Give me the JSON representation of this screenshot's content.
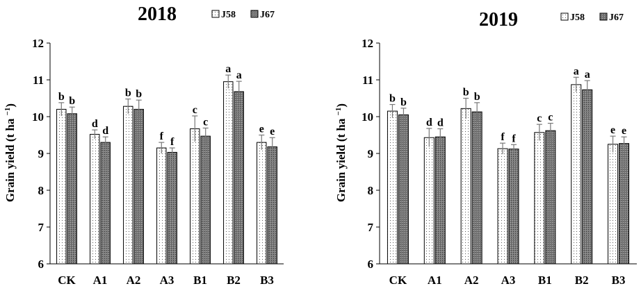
{
  "chart_data": [
    {
      "type": "bar",
      "title": "2018",
      "ylabel": "Grain yield (t ha",
      "ylabel_exp": "−1",
      "ylabel_close": ")",
      "ylim": [
        6,
        12
      ],
      "yticks": [
        "6",
        "7",
        "8",
        "9",
        "10",
        "11",
        "12"
      ],
      "categories": [
        "CK",
        "A1",
        "A2",
        "A3",
        "B1",
        "B2",
        "B3"
      ],
      "legend_position": "top-right",
      "series": [
        {
          "name": "J58",
          "pattern": "dotted",
          "values": [
            10.2,
            9.52,
            10.28,
            9.15,
            9.67,
            10.95,
            9.3
          ],
          "errors": [
            0.18,
            0.12,
            0.2,
            0.15,
            0.35,
            0.18,
            0.2
          ],
          "labels": [
            "b",
            "d",
            "b",
            "f",
            "c",
            "a",
            "e"
          ]
        },
        {
          "name": "J67",
          "pattern": "gray-crosshatch",
          "values": [
            10.08,
            9.3,
            10.2,
            9.03,
            9.47,
            10.68,
            9.18
          ],
          "errors": [
            0.18,
            0.15,
            0.25,
            0.12,
            0.22,
            0.28,
            0.25
          ],
          "labels": [
            "b",
            "d",
            "b",
            "f",
            "c",
            "a",
            "e"
          ]
        }
      ]
    },
    {
      "type": "bar",
      "title": "2019",
      "ylabel": "Grain yield (t ha",
      "ylabel_exp": "−1",
      "ylabel_close": ")",
      "ylim": [
        6,
        12
      ],
      "yticks": [
        "6",
        "7",
        "8",
        "9",
        "10",
        "11",
        "12"
      ],
      "categories": [
        "CK",
        "A1",
        "A2",
        "A3",
        "B1",
        "B2",
        "B3"
      ],
      "legend_position": "top-right",
      "series": [
        {
          "name": "J58",
          "pattern": "dotted",
          "values": [
            10.15,
            9.43,
            10.22,
            9.13,
            9.57,
            10.87,
            9.25
          ],
          "errors": [
            0.18,
            0.25,
            0.28,
            0.15,
            0.22,
            0.2,
            0.22
          ],
          "labels": [
            "b",
            "d",
            "b",
            "f",
            "c",
            "a",
            "e"
          ]
        },
        {
          "name": "J67",
          "pattern": "gray-crosshatch",
          "values": [
            10.05,
            9.45,
            10.13,
            9.12,
            9.62,
            10.73,
            9.27
          ],
          "errors": [
            0.18,
            0.22,
            0.25,
            0.12,
            0.2,
            0.25,
            0.18
          ],
          "labels": [
            "b",
            "d",
            "b",
            "f",
            "c",
            "a",
            "e"
          ]
        }
      ]
    }
  ]
}
